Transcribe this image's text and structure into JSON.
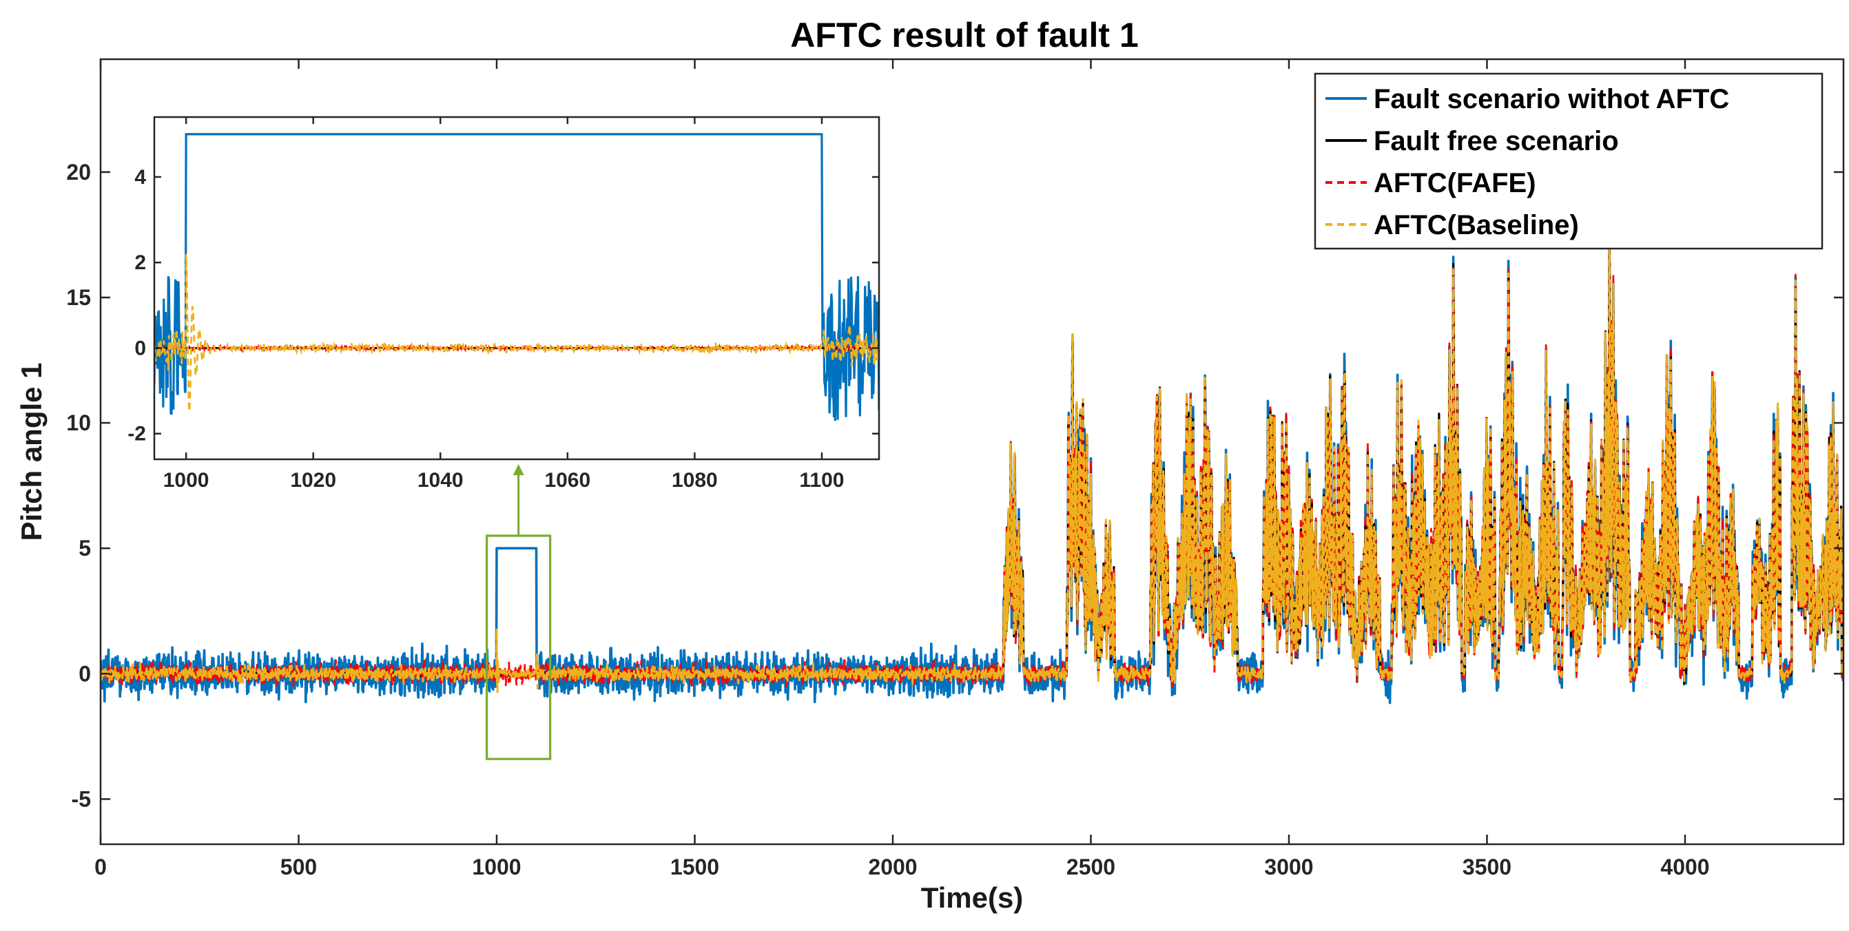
{
  "chart_data": {
    "type": "line",
    "title": "AFTC result of fault 1",
    "xlabel": "Time(s)",
    "ylabel": "Pitch angle 1",
    "xlim": [
      0,
      4400
    ],
    "ylim": [
      -6.8,
      24.5
    ],
    "xticks": [
      0,
      500,
      1000,
      1500,
      2000,
      2500,
      3000,
      3500,
      4000
    ],
    "yticks": [
      -5,
      0,
      5,
      10,
      15,
      20
    ],
    "grid": false,
    "legend_position": "top-right",
    "series": [
      {
        "name": "Fault scenario withot AFTC",
        "color": "#0072BD",
        "style": "solid",
        "description": "noise band about +/-1.3 around 0; steps to 5 between t=1000 and t=1100; large excursions after t=2280"
      },
      {
        "name": "Fault free scenario",
        "color": "#000000",
        "style": "solid"
      },
      {
        "name": "AFTC(FAFE)",
        "color": "#FF0000",
        "style": "dashed"
      },
      {
        "name": "AFTC(Baseline)",
        "color": "#EDB120",
        "style": "dashed"
      }
    ],
    "key_points": {
      "fault_start": 1000,
      "fault_end": 1100,
      "fault_value": 5,
      "turbulent_region_start": 2280,
      "max_peak": {
        "x": 3810,
        "y": 16.6
      }
    },
    "inset": {
      "xlim": [
        995,
        1109
      ],
      "ylim": [
        -2.6,
        5.4
      ],
      "xticks": [
        1000,
        1020,
        1040,
        1060,
        1080,
        1100
      ],
      "yticks": [
        -2,
        0,
        2,
        4
      ],
      "highlight_box_color": "#77AC30",
      "highlight_x_range": [
        975,
        1135
      ],
      "highlight_y_range": [
        -3.4,
        5.5
      ]
    }
  }
}
